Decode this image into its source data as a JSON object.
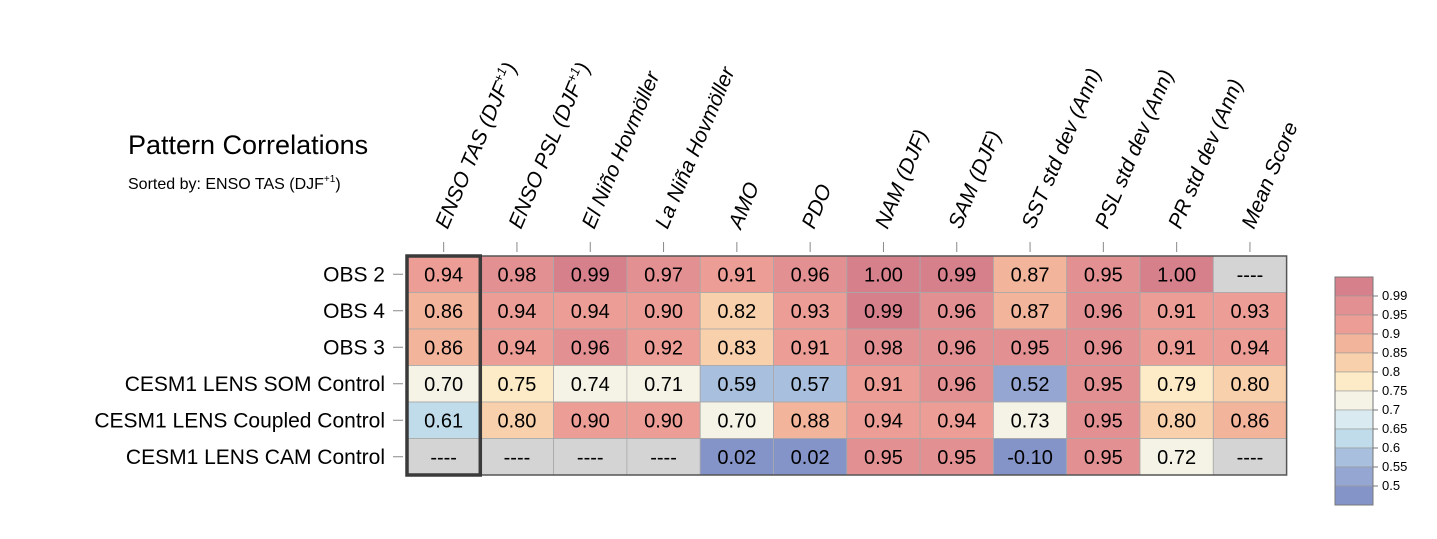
{
  "chart_data": {
    "type": "heatmap",
    "title": "Pattern Correlations",
    "subtitle": "Sorted by: ENSO TAS (DJF+1)",
    "subtitle_parts": {
      "prefix": "Sorted by: ENSO TAS (DJF",
      "superscript": "+1",
      "suffix": ")"
    },
    "columns": [
      {
        "label": "ENSO TAS (DJF",
        "sup": "+1",
        "suffix": ")"
      },
      {
        "label": "ENSO PSL (DJF",
        "sup": "+1",
        "suffix": ")"
      },
      {
        "label": "El Niño Hovmöller",
        "sup": "",
        "suffix": ""
      },
      {
        "label": "La Niña Hovmöller",
        "sup": "",
        "suffix": ""
      },
      {
        "label": "AMO",
        "sup": "",
        "suffix": ""
      },
      {
        "label": "PDO",
        "sup": "",
        "suffix": ""
      },
      {
        "label": "NAM (DJF)",
        "sup": "",
        "suffix": ""
      },
      {
        "label": "SAM (DJF)",
        "sup": "",
        "suffix": ""
      },
      {
        "label": "SST std dev (Ann)",
        "sup": "",
        "suffix": ""
      },
      {
        "label": "PSL std dev (Ann)",
        "sup": "",
        "suffix": ""
      },
      {
        "label": "PR std dev (Ann)",
        "sup": "",
        "suffix": ""
      },
      {
        "label": "Mean Score",
        "sup": "",
        "suffix": ""
      }
    ],
    "rows": [
      "OBS 2",
      "OBS 4",
      "OBS 3",
      "CESM1 LENS SOM Control",
      "CESM1 LENS Coupled Control",
      "CESM1 LENS CAM Control"
    ],
    "values": [
      [
        0.94,
        0.98,
        0.99,
        0.97,
        0.91,
        0.96,
        1.0,
        0.99,
        0.87,
        0.95,
        1.0,
        null
      ],
      [
        0.86,
        0.94,
        0.94,
        0.9,
        0.82,
        0.93,
        0.99,
        0.96,
        0.87,
        0.96,
        0.91,
        0.93
      ],
      [
        0.86,
        0.94,
        0.96,
        0.92,
        0.83,
        0.91,
        0.98,
        0.96,
        0.95,
        0.96,
        0.91,
        0.94
      ],
      [
        0.7,
        0.75,
        0.74,
        0.71,
        0.59,
        0.57,
        0.91,
        0.96,
        0.52,
        0.95,
        0.79,
        0.8
      ],
      [
        0.61,
        0.8,
        0.9,
        0.9,
        0.7,
        0.88,
        0.94,
        0.94,
        0.73,
        0.95,
        0.8,
        0.86
      ],
      [
        null,
        null,
        null,
        null,
        0.02,
        0.02,
        0.95,
        0.95,
        -0.1,
        0.95,
        0.72,
        null
      ]
    ],
    "missing_label": "----",
    "highlight_column": "ENSO TAS (DJF+1)",
    "colorbar": {
      "ticks": [
        "0.99",
        "0.95",
        "0.9",
        "0.85",
        "0.8",
        "0.75",
        "0.7",
        "0.65",
        "0.6",
        "0.55",
        "0.5"
      ],
      "colors": [
        "#d6808c",
        "#e39092",
        "#ec9e96",
        "#f2b59b",
        "#f8d1ac",
        "#fcebc6",
        "#f4f3e6",
        "#d9ebf0",
        "#c0dbe9",
        "#a8bfdd",
        "#96a6d2",
        "#8494c9"
      ],
      "missing_color": "#d4d4d4"
    }
  }
}
